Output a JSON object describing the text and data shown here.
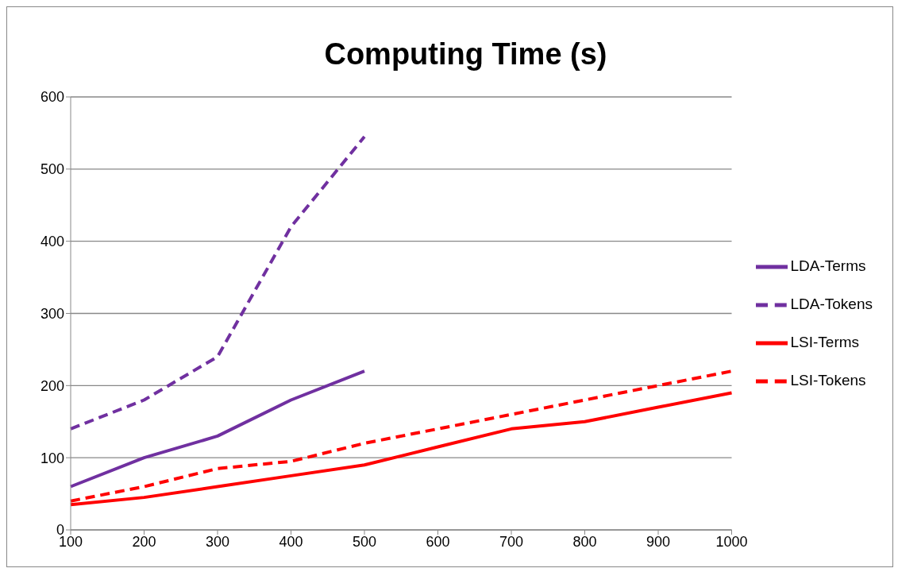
{
  "chart_data": {
    "type": "line",
    "title": "Computing Time (s)",
    "categories": [
      "100",
      "200",
      "300",
      "400",
      "500",
      "600",
      "700",
      "800",
      "900",
      "1000"
    ],
    "series": [
      {
        "name": "LSI-Terms",
        "color": "#ff0000",
        "line_style": "solid",
        "values": [
          35,
          45,
          60,
          75,
          90,
          115,
          140,
          150,
          170,
          190
        ]
      },
      {
        "name": "LSI-Tokens",
        "color": "#ff0000",
        "line_style": "dashed",
        "values": [
          40,
          60,
          85,
          95,
          120,
          140,
          160,
          180,
          200,
          220
        ]
      },
      {
        "name": "LDA-Terms",
        "color": "#7030a0",
        "line_style": "solid",
        "values": [
          60,
          100,
          130,
          180,
          220,
          null,
          null,
          null,
          null,
          null
        ]
      },
      {
        "name": "LDA-Tokens",
        "color": "#7030a0",
        "line_style": "dashed",
        "values": [
          140,
          180,
          240,
          420,
          545,
          null,
          null,
          null,
          null,
          null
        ]
      }
    ],
    "ylim": [
      0,
      600
    ],
    "yticks": [
      0,
      100,
      200,
      300,
      400,
      500,
      600
    ],
    "grid": "y",
    "legend": "right",
    "marker": "none"
  }
}
